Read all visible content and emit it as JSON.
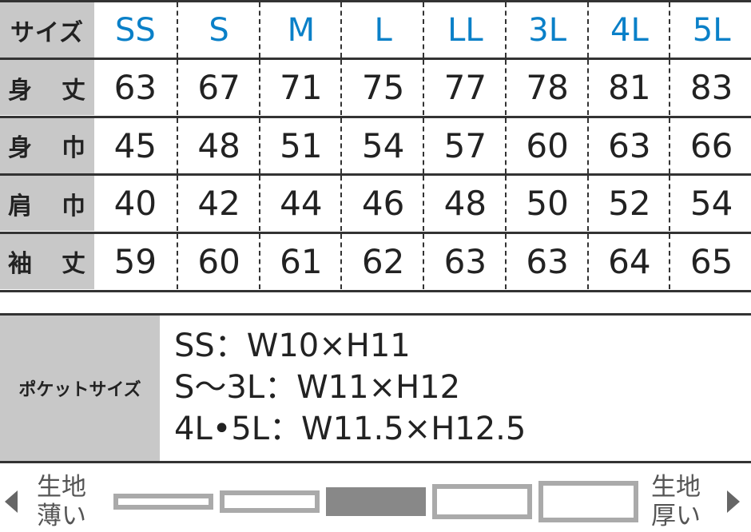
{
  "header": {
    "label": "サイズ",
    "sizes": [
      "SS",
      "S",
      "M",
      "L",
      "LL",
      "3L",
      "4L",
      "5L"
    ]
  },
  "rows": [
    {
      "label": [
        "身",
        "丈"
      ],
      "values": [
        "63",
        "67",
        "71",
        "75",
        "77",
        "78",
        "81",
        "83"
      ]
    },
    {
      "label": [
        "身",
        "巾"
      ],
      "values": [
        "45",
        "48",
        "51",
        "54",
        "57",
        "60",
        "63",
        "66"
      ]
    },
    {
      "label": [
        "肩",
        "巾"
      ],
      "values": [
        "40",
        "42",
        "44",
        "46",
        "48",
        "50",
        "52",
        "54"
      ]
    },
    {
      "label": [
        "袖",
        "丈"
      ],
      "values": [
        "59",
        "60",
        "61",
        "62",
        "63",
        "63",
        "64",
        "65"
      ]
    }
  ],
  "pocket": {
    "label": "ポケットサイズ",
    "lines": [
      "SS：W10×H11",
      "S～3L：W11×H12",
      "4L•5L：W11.5×H12.5"
    ]
  },
  "thickness": {
    "left_label": [
      "生地",
      "薄い"
    ],
    "right_label": [
      "生地",
      "厚い"
    ],
    "levels": 5,
    "selected_level": 3,
    "colors": {
      "selected": "#888888",
      "unselected_border": "#aaaaaa"
    }
  },
  "colors": {
    "size_header": "#0a80c8",
    "label_bg": "#c8c8c8"
  }
}
